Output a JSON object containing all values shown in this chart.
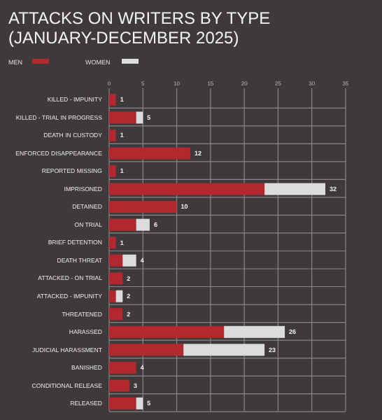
{
  "chart_data": {
    "type": "bar",
    "orientation": "horizontal",
    "stacked": true,
    "title": "ATTACKS ON WRITERS BY TYPE (JANUARY-DECEMBER 2025)",
    "categories": [
      "KILLED - IMPUNITY",
      "KILLED - TRIAL IN PROGRESS",
      "DEATH IN CUSTODY",
      "ENFORCED DISAPPEARANCE",
      "REPORTED MISSING",
      "IMPRISONED",
      "DETAINED",
      "ON TRIAL",
      "BRIEF DETENTION",
      "DEATH THREAT",
      "ATTACKED - ON TRIAL",
      "ATTACKED - IMPUNITY",
      "THREATENED",
      "HARASSED",
      "JUDICIAL HARASSMENT",
      "BANISHED",
      "CONDITIONAL RELEASE",
      "RELEASED"
    ],
    "series": [
      {
        "name": "MEN",
        "color": "#b3282f",
        "values": [
          1,
          4,
          1,
          12,
          1,
          23,
          10,
          4,
          1,
          2,
          2,
          1,
          2,
          17,
          11,
          4,
          3,
          4
        ]
      },
      {
        "name": "WOMEN",
        "color": "#dcdcdc",
        "values": [
          0,
          1,
          0,
          0,
          0,
          9,
          0,
          2,
          0,
          2,
          0,
          1,
          0,
          9,
          12,
          0,
          0,
          1
        ]
      }
    ],
    "totals": [
      "1",
      "5",
      "1",
      "12",
      "1",
      "32",
      "10",
      "6",
      "1",
      "4",
      "2",
      "2",
      "2",
      "26",
      "23",
      "4",
      "3",
      "5"
    ],
    "xlim": [
      0,
      35
    ],
    "xticks": [
      0,
      5,
      10,
      15,
      20,
      25,
      30,
      35
    ],
    "grid": true,
    "legend": "top left"
  }
}
